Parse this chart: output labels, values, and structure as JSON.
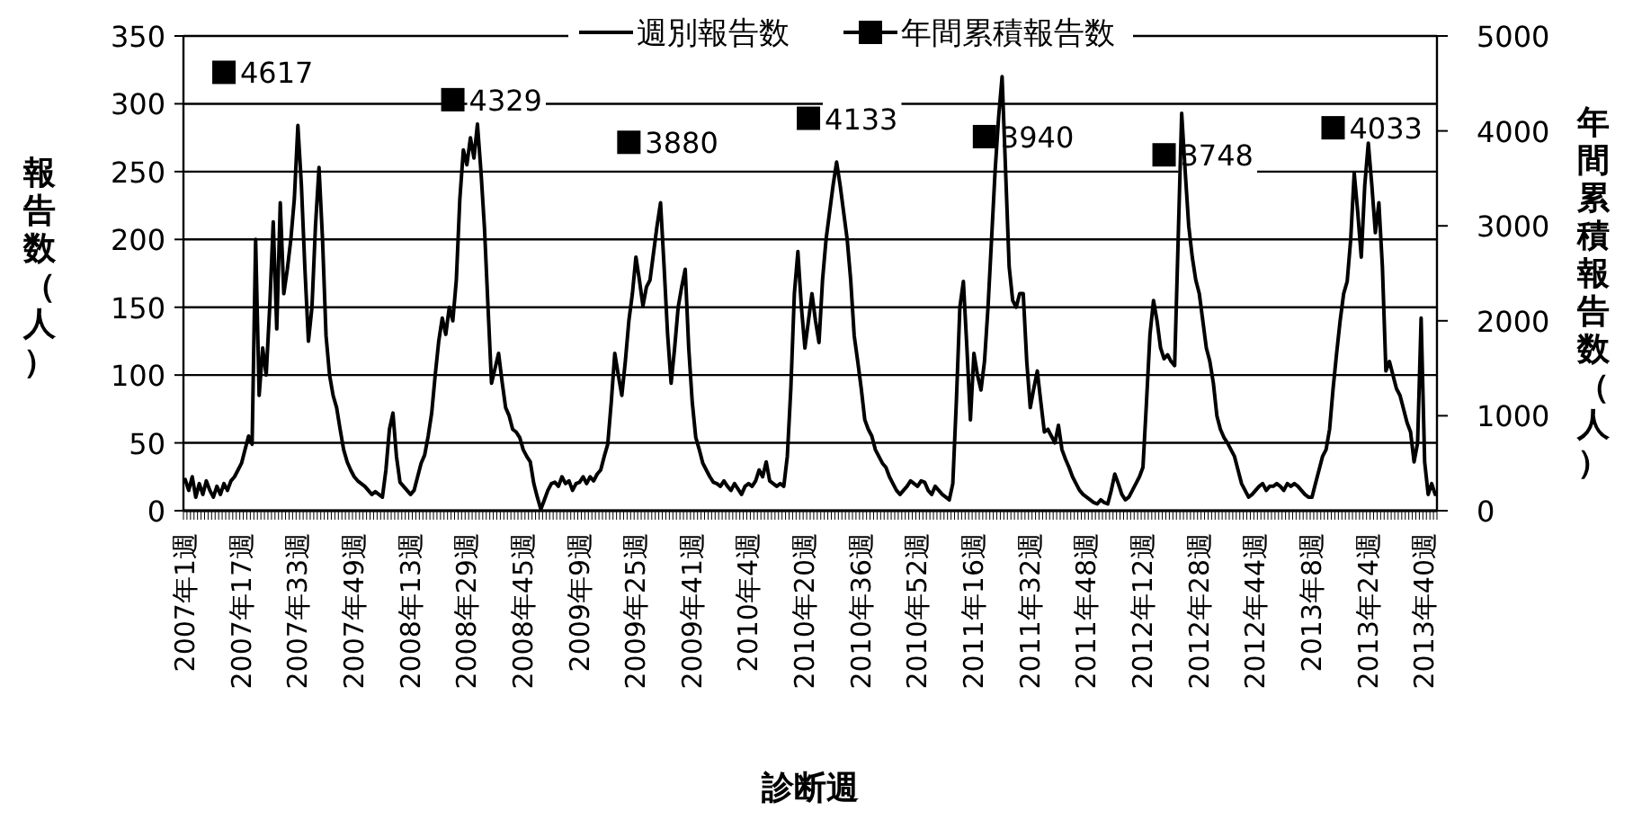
{
  "chart_data": {
    "type": "line",
    "categories": [
      "2007年1週",
      null,
      null,
      null,
      null,
      null,
      null,
      null,
      null,
      null,
      null,
      null,
      null,
      null,
      null,
      null,
      "2007年17週",
      null,
      null,
      null,
      null,
      null,
      null,
      null,
      null,
      null,
      null,
      null,
      null,
      null,
      null,
      null,
      "2007年33週",
      null,
      null,
      null,
      null,
      null,
      null,
      null,
      null,
      null,
      null,
      null,
      null,
      null,
      null,
      null,
      "2007年49週",
      null,
      null,
      null,
      null,
      null,
      null,
      null,
      null,
      null,
      null,
      null,
      null,
      null,
      null,
      null,
      "2008年13週",
      null,
      null,
      null,
      null,
      null,
      null,
      null,
      null,
      null,
      null,
      null,
      null,
      null,
      null,
      null,
      "2008年29週",
      null,
      null,
      null,
      null,
      null,
      null,
      null,
      null,
      null,
      null,
      null,
      null,
      null,
      null,
      null,
      "2008年45週",
      null,
      null,
      null,
      null,
      null,
      null,
      null,
      null,
      null,
      null,
      null,
      null,
      null,
      null,
      null,
      "2009年9週",
      null,
      null,
      null,
      null,
      null,
      null,
      null,
      null,
      null,
      null,
      null,
      null,
      null,
      null,
      null,
      "2009年25週",
      null,
      null,
      null,
      null,
      null,
      null,
      null,
      null,
      null,
      null,
      null,
      null,
      null,
      null,
      null,
      "2009年41週",
      null,
      null,
      null,
      null,
      null,
      null,
      null,
      null,
      null,
      null,
      null,
      null,
      null,
      null,
      null,
      "2010年4週",
      null,
      null,
      null,
      null,
      null,
      null,
      null,
      null,
      null,
      null,
      null,
      null,
      null,
      null,
      null,
      "2010年20週",
      null,
      null,
      null,
      null,
      null,
      null,
      null,
      null,
      null,
      null,
      null,
      null,
      null,
      null,
      null,
      "2010年36週",
      null,
      null,
      null,
      null,
      null,
      null,
      null,
      null,
      null,
      null,
      null,
      null,
      null,
      null,
      null,
      "2010年52週",
      null,
      null,
      null,
      null,
      null,
      null,
      null,
      null,
      null,
      null,
      null,
      null,
      null,
      null,
      null,
      "2011年16週",
      null,
      null,
      null,
      null,
      null,
      null,
      null,
      null,
      null,
      null,
      null,
      null,
      null,
      null,
      null,
      "2011年32週",
      null,
      null,
      null,
      null,
      null,
      null,
      null,
      null,
      null,
      null,
      null,
      null,
      null,
      null,
      null,
      "2011年48週",
      null,
      null,
      null,
      null,
      null,
      null,
      null,
      null,
      null,
      null,
      null,
      null,
      null,
      null,
      null,
      "2012年12週",
      null,
      null,
      null,
      null,
      null,
      null,
      null,
      null,
      null,
      null,
      null,
      null,
      null,
      null,
      null,
      "2012年28週",
      null,
      null,
      null,
      null,
      null,
      null,
      null,
      null,
      null,
      null,
      null,
      null,
      null,
      null,
      null,
      "2012年44週",
      null,
      null,
      null,
      null,
      null,
      null,
      null,
      null,
      null,
      null,
      null,
      null,
      null,
      null,
      null,
      "2013年8週",
      null,
      null,
      null,
      null,
      null,
      null,
      null,
      null,
      null,
      null,
      null,
      null,
      null,
      null,
      null,
      "2013年24週",
      null,
      null,
      null,
      null,
      null,
      null,
      null,
      null,
      null,
      null,
      null,
      null,
      null,
      null,
      null,
      "2013年40週",
      null,
      null,
      null
    ],
    "series": [
      {
        "name": "週別報告数",
        "color": "#000000",
        "marker": "none",
        "line_style": "solid",
        "values": [
          23,
          15,
          25,
          10,
          20,
          12,
          22,
          15,
          10,
          18,
          12,
          20,
          15,
          22,
          25,
          30,
          35,
          45,
          55,
          49,
          200,
          85,
          120,
          100,
          150,
          213,
          134,
          227,
          160,
          178,
          200,
          230,
          284,
          240,
          178,
          125,
          150,
          210,
          253,
          200,
          129,
          100,
          85,
          76,
          60,
          45,
          36,
          30,
          25,
          22,
          20,
          18,
          15,
          12,
          14,
          12,
          10,
          30,
          60,
          72,
          40,
          21,
          18,
          15,
          12,
          15,
          25,
          35,
          41,
          55,
          72,
          100,
          125,
          142,
          130,
          150,
          140,
          170,
          230,
          266,
          255,
          275,
          260,
          285,
          250,
          208,
          150,
          94,
          105,
          116,
          95,
          76,
          70,
          60,
          58,
          54,
          45,
          40,
          36,
          20,
          10,
          1,
          8,
          15,
          20,
          21,
          18,
          25,
          20,
          22,
          15,
          20,
          21,
          25,
          20,
          25,
          22,
          27,
          30,
          40,
          49,
          80,
          116,
          100,
          85,
          110,
          140,
          160,
          187,
          170,
          151,
          165,
          170,
          190,
          210,
          227,
          180,
          130,
          94,
          120,
          150,
          165,
          178,
          120,
          80,
          54,
          45,
          35,
          30,
          25,
          21,
          20,
          18,
          22,
          18,
          15,
          20,
          16,
          12,
          18,
          20,
          18,
          22,
          30,
          25,
          36,
          22,
          20,
          18,
          20,
          18,
          40,
          90,
          160,
          191,
          150,
          120,
          140,
          160,
          140,
          124,
          170,
          200,
          220,
          240,
          257,
          240,
          220,
          200,
          170,
          129,
          110,
          90,
          67,
          60,
          55,
          45,
          40,
          35,
          32,
          25,
          20,
          15,
          12,
          15,
          18,
          22,
          20,
          18,
          22,
          21,
          15,
          12,
          18,
          15,
          12,
          10,
          8,
          20,
          80,
          150,
          169,
          120,
          67,
          116,
          100,
          89,
          110,
          150,
          200,
          250,
          290,
          320,
          250,
          180,
          155,
          150,
          160,
          160,
          110,
          76,
          90,
          103,
          80,
          58,
          60,
          55,
          50,
          63,
          45,
          38,
          32,
          25,
          20,
          15,
          12,
          10,
          8,
          6,
          5,
          8,
          6,
          5,
          15,
          27,
          20,
          12,
          8,
          10,
          15,
          20,
          25,
          32,
          80,
          130,
          155,
          140,
          120,
          112,
          115,
          110,
          107,
          200,
          293,
          250,
          210,
          187,
          170,
          160,
          140,
          120,
          110,
          94,
          70,
          60,
          54,
          50,
          45,
          40,
          30,
          20,
          15,
          10,
          12,
          15,
          18,
          20,
          15,
          18,
          18,
          20,
          18,
          15,
          20,
          18,
          20,
          18,
          15,
          12,
          10,
          10,
          20,
          30,
          40,
          45,
          60,
          90,
          116,
          140,
          160,
          169,
          200,
          249,
          220,
          187,
          240,
          271,
          240,
          205,
          227,
          180,
          103,
          110,
          100,
          90,
          85,
          75,
          65,
          58,
          36,
          50,
          142,
          36,
          12,
          20,
          12
        ]
      },
      {
        "name": "年間累積報告数",
        "color": "#000000",
        "type": "scatter",
        "marker": "square",
        "axis": "y2",
        "data_labels": true,
        "values": [
          null,
          null,
          null,
          null,
          null,
          null,
          null,
          null,
          null,
          null,
          null,
          4617,
          null,
          null,
          null,
          null,
          null,
          null,
          null,
          null,
          null,
          null,
          null,
          null,
          null,
          null,
          null,
          null,
          null,
          null,
          null,
          null,
          null,
          null,
          null,
          null,
          null,
          null,
          null,
          null,
          null,
          null,
          null,
          null,
          null,
          null,
          null,
          null,
          null,
          null,
          null,
          null,
          null,
          null,
          null,
          null,
          null,
          null,
          null,
          null,
          null,
          null,
          null,
          null,
          null,
          null,
          null,
          null,
          null,
          null,
          null,
          null,
          null,
          null,
          null,
          null,
          4329,
          null,
          null,
          null,
          null,
          null,
          null,
          null,
          null,
          null,
          null,
          null,
          null,
          null,
          null,
          null,
          null,
          null,
          null,
          null,
          null,
          null,
          null,
          null,
          null,
          null,
          null,
          null,
          null,
          null,
          null,
          null,
          null,
          null,
          null,
          null,
          null,
          null,
          null,
          null,
          null,
          null,
          null,
          null,
          null,
          null,
          null,
          null,
          null,
          null,
          3880,
          null,
          null,
          null,
          null,
          null,
          null,
          null,
          null,
          null,
          null,
          null,
          null,
          null,
          null,
          null,
          null,
          null,
          null,
          null,
          null,
          null,
          null,
          null,
          null,
          null,
          null,
          null,
          null,
          null,
          null,
          null,
          null,
          null,
          null,
          null,
          null,
          null,
          null,
          null,
          null,
          null,
          null,
          null,
          null,
          null,
          null,
          null,
          null,
          null,
          null,
          4133,
          null,
          null,
          null,
          null,
          null,
          null,
          null,
          null,
          null,
          null,
          null,
          null,
          null,
          null,
          null,
          null,
          null,
          null,
          null,
          null,
          null,
          null,
          null,
          null,
          null,
          null,
          null,
          null,
          null,
          null,
          null,
          null,
          null,
          null,
          null,
          null,
          null,
          null,
          null,
          null,
          null,
          null,
          null,
          null,
          null,
          null,
          null,
          null,
          null,
          3940,
          null,
          null,
          null,
          null,
          null,
          null,
          null,
          null,
          null,
          null,
          null,
          null,
          null,
          null,
          null,
          null,
          null,
          null,
          null,
          null,
          null,
          null,
          null,
          null,
          null,
          null,
          null,
          null,
          null,
          null,
          null,
          null,
          null,
          null,
          null,
          null,
          null,
          null,
          null,
          null,
          null,
          null,
          null,
          null,
          null,
          null,
          null,
          null,
          null,
          null,
          3748,
          null,
          null,
          null,
          null,
          null,
          null,
          null,
          null,
          null,
          null,
          null,
          null,
          null,
          null,
          null,
          null,
          null,
          null,
          null,
          null,
          null,
          null,
          null,
          null,
          null,
          null,
          null,
          null,
          null,
          null,
          null,
          null,
          null,
          null,
          null,
          null,
          null,
          null,
          null,
          null,
          null,
          null,
          null,
          null,
          null,
          null,
          null,
          4033,
          null,
          null,
          null,
          null,
          null,
          null,
          null,
          null,
          null,
          null,
          null,
          null,
          null,
          null,
          null,
          null,
          null,
          null,
          null,
          null,
          null,
          null,
          null,
          null,
          null,
          null,
          null,
          null,
          null
        ]
      }
    ],
    "xlabel": "診断週",
    "ylabel": "報告数（人）",
    "y2label": "年間累積報告数（人）",
    "ylim": [
      0,
      350
    ],
    "yticks": [
      0,
      50,
      100,
      150,
      200,
      250,
      300,
      350
    ],
    "y2lim": [
      0,
      5000
    ],
    "y2ticks": [
      0,
      1000,
      2000,
      3000,
      4000,
      5000
    ],
    "grid": "y",
    "legend": "top"
  }
}
